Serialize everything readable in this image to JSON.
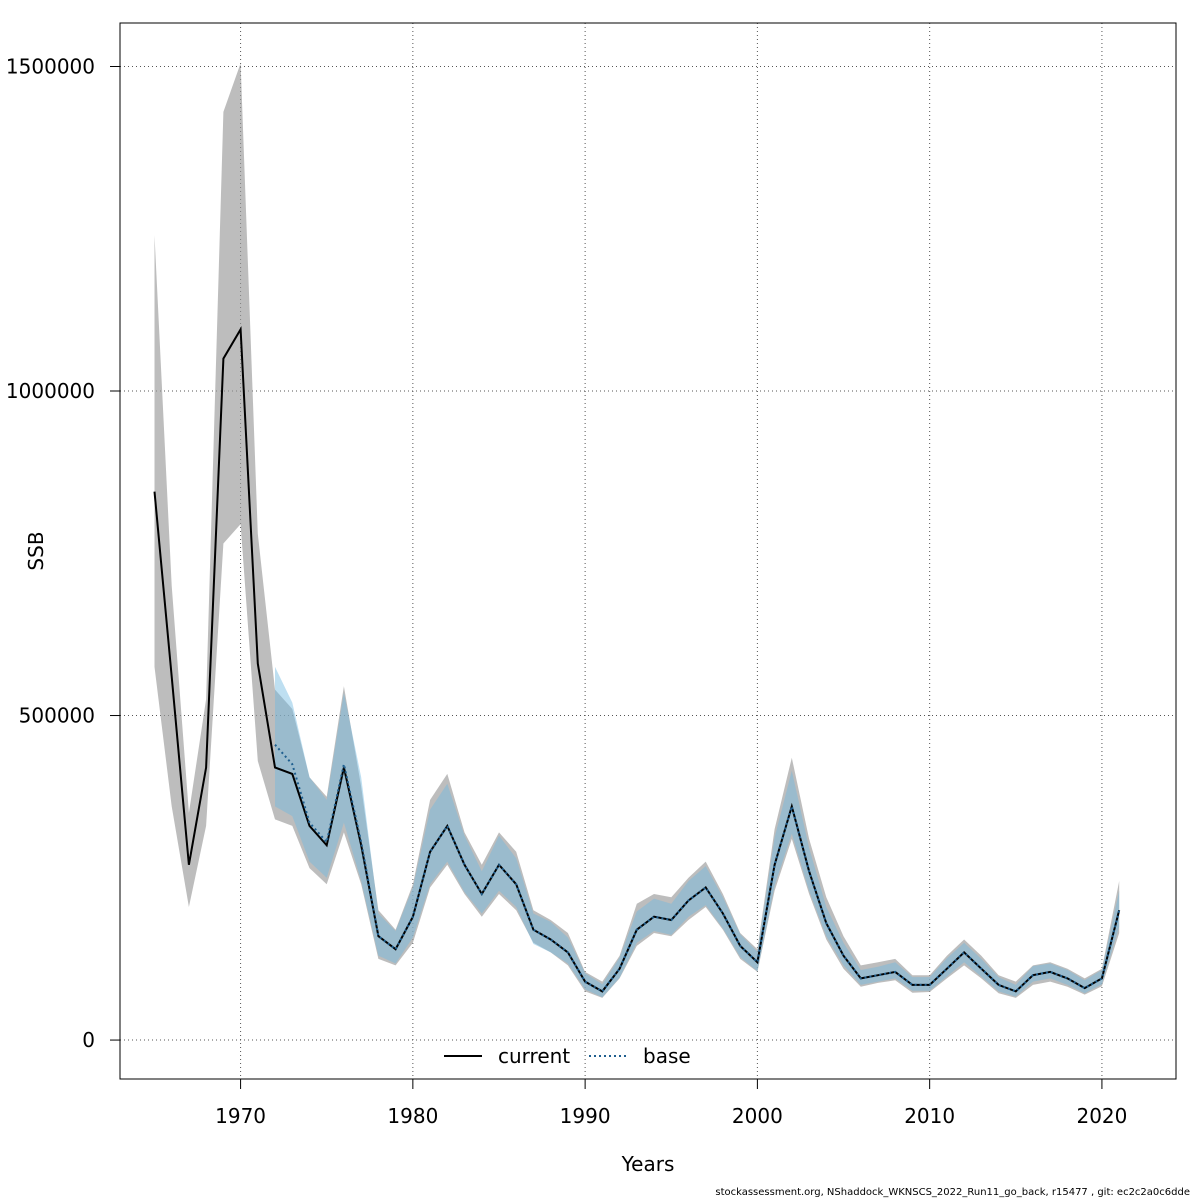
{
  "chart_data": {
    "type": "line",
    "xlabel": "Years",
    "ylabel": "SSB",
    "xlim": [
      1963,
      2024.3
    ],
    "ylim": [
      -60000,
      1567000
    ],
    "x_ticks": [
      1970,
      1980,
      1990,
      2000,
      2010,
      2020
    ],
    "y_ticks": [
      0,
      500000,
      1000000,
      1500000
    ],
    "y_tick_labels": [
      "0",
      "500000",
      "1000000",
      "1500000"
    ],
    "grid": true,
    "legend": {
      "position": "bottom-center",
      "entries": [
        "current",
        "base"
      ]
    },
    "colors": {
      "current_band": "#999999",
      "base_band": "#6fb7e0",
      "current_line": "#000000",
      "base_line": "#1f5f8f"
    },
    "series": [
      {
        "name": "current",
        "style": "solid",
        "x": [
          1965,
          1966,
          1967,
          1968,
          1969,
          1970,
          1971,
          1972,
          1973,
          1974,
          1975,
          1976,
          1977,
          1978,
          1979,
          1980,
          1981,
          1982,
          1983,
          1984,
          1985,
          1986,
          1987,
          1988,
          1989,
          1990,
          1991,
          1992,
          1993,
          1994,
          1995,
          1996,
          1997,
          1998,
          1999,
          2000,
          2001,
          2002,
          2003,
          2004,
          2005,
          2006,
          2007,
          2008,
          2009,
          2010,
          2011,
          2012,
          2013,
          2014,
          2015,
          2016,
          2017,
          2018,
          2019,
          2020,
          2021
        ],
        "y": [
          845000,
          560000,
          270000,
          420000,
          1050000,
          1095000,
          580000,
          420000,
          410000,
          330000,
          300000,
          420000,
          300000,
          160000,
          140000,
          190000,
          290000,
          330000,
          270000,
          225000,
          270000,
          240000,
          170000,
          155000,
          135000,
          90000,
          75000,
          110000,
          170000,
          190000,
          185000,
          215000,
          235000,
          195000,
          145000,
          120000,
          270000,
          360000,
          260000,
          180000,
          130000,
          95000,
          100000,
          105000,
          85000,
          85000,
          110000,
          135000,
          110000,
          85000,
          75000,
          100000,
          105000,
          95000,
          80000,
          95000,
          200000
        ],
        "lower": [
          575000,
          360000,
          205000,
          330000,
          765000,
          795000,
          430000,
          340000,
          330000,
          265000,
          240000,
          320000,
          240000,
          125000,
          115000,
          150000,
          235000,
          270000,
          225000,
          190000,
          225000,
          200000,
          150000,
          135000,
          115000,
          75000,
          65000,
          95000,
          145000,
          165000,
          160000,
          185000,
          205000,
          170000,
          125000,
          105000,
          230000,
          310000,
          225000,
          155000,
          110000,
          82000,
          88000,
          92000,
          73000,
          74000,
          95000,
          115000,
          95000,
          72000,
          65000,
          85000,
          90000,
          82000,
          70000,
          83000,
          165000
        ],
        "upper": [
          1240000,
          700000,
          350000,
          525000,
          1430000,
          1505000,
          780000,
          540000,
          510000,
          405000,
          375000,
          545000,
          390000,
          200000,
          170000,
          240000,
          370000,
          410000,
          320000,
          270000,
          320000,
          290000,
          200000,
          185000,
          165000,
          105000,
          90000,
          130000,
          210000,
          225000,
          220000,
          250000,
          275000,
          225000,
          165000,
          140000,
          325000,
          435000,
          310000,
          220000,
          160000,
          115000,
          120000,
          125000,
          100000,
          100000,
          130000,
          155000,
          130000,
          100000,
          90000,
          115000,
          120000,
          110000,
          95000,
          110000,
          245000
        ]
      },
      {
        "name": "base",
        "style": "dotted",
        "x": [
          1972,
          1973,
          1974,
          1975,
          1976,
          1977,
          1978,
          1979,
          1980,
          1981,
          1982,
          1983,
          1984,
          1985,
          1986,
          1987,
          1988,
          1989,
          1990,
          1991,
          1992,
          1993,
          1994,
          1995,
          1996,
          1997,
          1998,
          1999,
          2000,
          2001,
          2002,
          2003,
          2004,
          2005,
          2006,
          2007,
          2008,
          2009,
          2010,
          2011,
          2012,
          2013,
          2014,
          2015,
          2016,
          2017,
          2018,
          2019,
          2020,
          2021
        ],
        "y": [
          455000,
          425000,
          335000,
          305000,
          425000,
          305000,
          160000,
          140000,
          190000,
          290000,
          330000,
          270000,
          225000,
          270000,
          240000,
          170000,
          155000,
          135000,
          90000,
          75000,
          110000,
          170000,
          190000,
          185000,
          215000,
          235000,
          195000,
          145000,
          120000,
          270000,
          360000,
          260000,
          180000,
          130000,
          95000,
          100000,
          105000,
          85000,
          85000,
          110000,
          135000,
          110000,
          85000,
          75000,
          100000,
          105000,
          95000,
          80000,
          95000,
          200000
        ],
        "lower": [
          360000,
          345000,
          275000,
          250000,
          335000,
          245000,
          130000,
          118000,
          158000,
          240000,
          275000,
          228000,
          195000,
          230000,
          205000,
          148000,
          135000,
          118000,
          78000,
          66000,
          96000,
          150000,
          168000,
          162000,
          190000,
          208000,
          172000,
          128000,
          106000,
          238000,
          318000,
          230000,
          160000,
          115000,
          85000,
          90000,
          95000,
          76000,
          76000,
          98000,
          120000,
          98000,
          75000,
          67000,
          90000,
          95000,
          85000,
          72000,
          86000,
          175000
        ],
        "upper": [
          575000,
          520000,
          405000,
          370000,
          535000,
          405000,
          195000,
          168000,
          235000,
          355000,
          395000,
          315000,
          260000,
          315000,
          280000,
          195000,
          182000,
          158000,
          103000,
          86000,
          127000,
          198000,
          218000,
          210000,
          245000,
          268000,
          220000,
          163000,
          136000,
          312000,
          415000,
          296000,
          205000,
          150000,
          108000,
          113000,
          120000,
          97000,
          97000,
          126000,
          150000,
          125000,
          97000,
          85000,
          114000,
          118000,
          108000,
          92000,
          108000,
          230000
        ]
      }
    ]
  },
  "footer": "stockassessment.org, NShaddock_WKNSCS_2022_Run11_go_back, r15477 , git: ec2c2a0c6dde"
}
